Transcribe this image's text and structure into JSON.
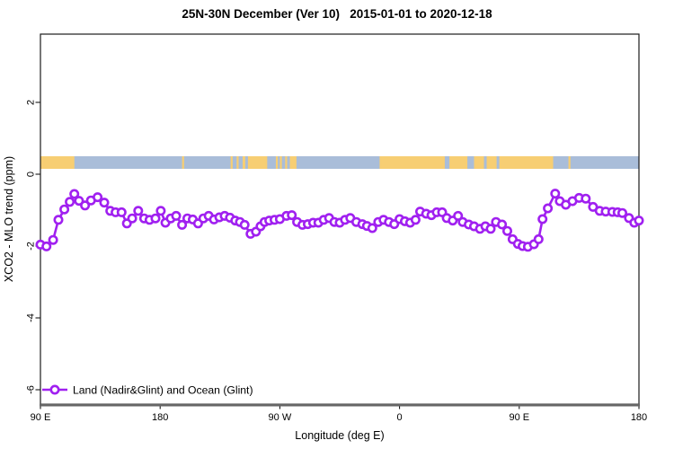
{
  "chart_data": {
    "type": "line",
    "title": "25N-30N December (Ver 10)   2015-01-01 to 2020-12-18",
    "xlabel": "Longitude (deg E)",
    "ylabel": "XCO2 - MLO trend (ppm)",
    "series_color": "#A020F0",
    "axis_line_color": "#666666",
    "x_axis": {
      "unit": "degrees east offset from 90E (axis wraps 90E > 180 > 90W > 0 > 90E > 180)",
      "range_offset_deg": [
        0,
        450
      ],
      "ticks": [
        {
          "offset": 0,
          "label": "90 E"
        },
        {
          "offset": 90,
          "label": "180"
        },
        {
          "offset": 180,
          "label": "90 W"
        },
        {
          "offset": 270,
          "label": "0"
        },
        {
          "offset": 360,
          "label": "90 E"
        },
        {
          "offset": 450,
          "label": "180"
        }
      ]
    },
    "y_axis": {
      "range": [
        -6.4,
        3.9
      ],
      "ticks": [
        2,
        0,
        -2,
        -4,
        -6
      ]
    },
    "legend": {
      "position": "bottom-left",
      "entries": [
        {
          "label": "Land (Nadir&Glint) and Ocean (Glint)",
          "color": "#A020F0",
          "marker": "open-circle-on-line"
        }
      ]
    },
    "surface_strip": {
      "y_data_range": [
        0.15,
        0.5
      ],
      "ocean_color": "#A9BDD9",
      "land_color": "#F7CE73",
      "land_segments_offset_deg": [
        [
          0,
          25.5
        ],
        [
          106.5,
          108
        ],
        [
          143,
          144.5
        ],
        [
          147.5,
          149
        ],
        [
          152,
          154
        ],
        [
          156,
          170.5
        ],
        [
          177,
          178.5
        ],
        [
          180,
          181.5
        ],
        [
          184,
          185.5
        ],
        [
          187.5,
          192.5
        ],
        [
          255,
          304
        ],
        [
          307.5,
          321
        ],
        [
          326,
          333.5
        ],
        [
          335.5,
          343
        ],
        [
          345,
          385.5
        ],
        [
          397,
          398.5
        ]
      ]
    },
    "series": [
      {
        "name": "Land (Nadir&Glint) and Ocean (Glint)",
        "color": "#A020F0",
        "points": [
          [
            0,
            -1.96
          ],
          [
            4.5,
            -2.01
          ],
          [
            9.5,
            -1.83
          ],
          [
            13.5,
            -1.27
          ],
          [
            18,
            -0.98
          ],
          [
            22,
            -0.77
          ],
          [
            25.5,
            -0.55
          ],
          [
            29,
            -0.74
          ],
          [
            33.5,
            -0.87
          ],
          [
            38,
            -0.73
          ],
          [
            43,
            -0.64
          ],
          [
            48,
            -0.79
          ],
          [
            52.5,
            -1.02
          ],
          [
            56.5,
            -1.06
          ],
          [
            61,
            -1.06
          ],
          [
            65,
            -1.37
          ],
          [
            69,
            -1.23
          ],
          [
            73.5,
            -1.02
          ],
          [
            78,
            -1.23
          ],
          [
            82,
            -1.27
          ],
          [
            86.5,
            -1.23
          ],
          [
            90.5,
            -1.02
          ],
          [
            94,
            -1.35
          ],
          [
            98,
            -1.23
          ],
          [
            102,
            -1.16
          ],
          [
            106.5,
            -1.41
          ],
          [
            110.5,
            -1.23
          ],
          [
            114.5,
            -1.26
          ],
          [
            118.5,
            -1.37
          ],
          [
            122.5,
            -1.23
          ],
          [
            126.5,
            -1.16
          ],
          [
            130.5,
            -1.26
          ],
          [
            134.5,
            -1.2
          ],
          [
            138.5,
            -1.16
          ],
          [
            142.5,
            -1.21
          ],
          [
            146.5,
            -1.29
          ],
          [
            150,
            -1.33
          ],
          [
            153.5,
            -1.41
          ],
          [
            158,
            -1.66
          ],
          [
            162,
            -1.6
          ],
          [
            165.5,
            -1.45
          ],
          [
            168.5,
            -1.33
          ],
          [
            172,
            -1.29
          ],
          [
            176,
            -1.27
          ],
          [
            180,
            -1.25
          ],
          [
            185,
            -1.16
          ],
          [
            189,
            -1.14
          ],
          [
            193,
            -1.33
          ],
          [
            197,
            -1.41
          ],
          [
            201,
            -1.39
          ],
          [
            205,
            -1.35
          ],
          [
            209,
            -1.35
          ],
          [
            213,
            -1.27
          ],
          [
            217,
            -1.22
          ],
          [
            221,
            -1.33
          ],
          [
            225,
            -1.35
          ],
          [
            229,
            -1.27
          ],
          [
            233,
            -1.22
          ],
          [
            237.5,
            -1.33
          ],
          [
            242,
            -1.39
          ],
          [
            245.5,
            -1.44
          ],
          [
            249.5,
            -1.5
          ],
          [
            254,
            -1.33
          ],
          [
            258,
            -1.27
          ],
          [
            262,
            -1.33
          ],
          [
            266,
            -1.39
          ],
          [
            270,
            -1.25
          ],
          [
            274,
            -1.31
          ],
          [
            278,
            -1.35
          ],
          [
            282,
            -1.27
          ],
          [
            285.5,
            -1.04
          ],
          [
            290,
            -1.1
          ],
          [
            294,
            -1.14
          ],
          [
            298,
            -1.06
          ],
          [
            302,
            -1.06
          ],
          [
            305.5,
            -1.22
          ],
          [
            310,
            -1.29
          ],
          [
            314,
            -1.16
          ],
          [
            317.5,
            -1.33
          ],
          [
            322,
            -1.4
          ],
          [
            326,
            -1.45
          ],
          [
            330.5,
            -1.52
          ],
          [
            334.5,
            -1.45
          ],
          [
            338.5,
            -1.52
          ],
          [
            342.5,
            -1.33
          ],
          [
            347,
            -1.4
          ],
          [
            351,
            -1.58
          ],
          [
            355,
            -1.81
          ],
          [
            359,
            -1.94
          ],
          [
            362.5,
            -2.0
          ],
          [
            366.5,
            -2.02
          ],
          [
            371,
            -1.95
          ],
          [
            374.5,
            -1.81
          ],
          [
            377.5,
            -1.25
          ],
          [
            381.5,
            -0.95
          ],
          [
            387,
            -0.54
          ],
          [
            390.5,
            -0.75
          ],
          [
            395,
            -0.85
          ],
          [
            400,
            -0.75
          ],
          [
            405,
            -0.66
          ],
          [
            410,
            -0.68
          ],
          [
            415.5,
            -0.91
          ],
          [
            420.5,
            -1.02
          ],
          [
            425,
            -1.04
          ],
          [
            430,
            -1.05
          ],
          [
            434,
            -1.06
          ],
          [
            437.5,
            -1.08
          ],
          [
            442.5,
            -1.22
          ],
          [
            446.5,
            -1.35
          ],
          [
            450,
            -1.29
          ]
        ]
      }
    ]
  }
}
